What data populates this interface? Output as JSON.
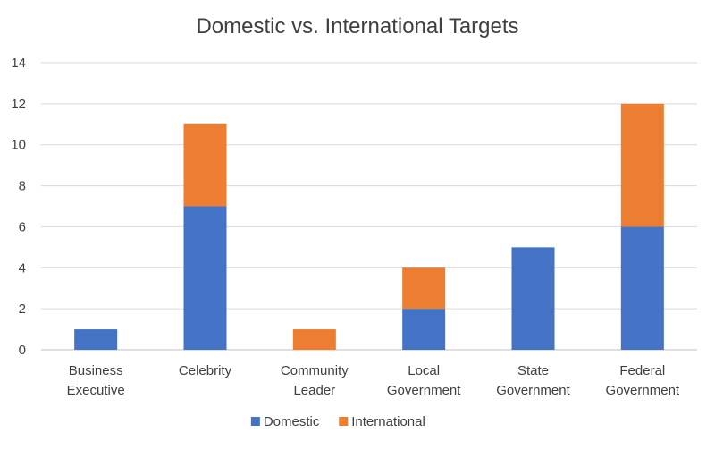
{
  "chart_data": {
    "type": "bar",
    "stacked": true,
    "title": "Domestic vs. International Targets",
    "categories": [
      [
        "Business",
        "Executive"
      ],
      [
        "Celebrity"
      ],
      [
        "Community",
        "Leader"
      ],
      [
        "Local",
        "Government"
      ],
      [
        "State",
        "Government"
      ],
      [
        "Federal",
        "Government"
      ]
    ],
    "series": [
      {
        "name": "Domestic",
        "color": "#4472C4",
        "values": [
          1,
          7,
          0,
          2,
          5,
          6
        ]
      },
      {
        "name": "International",
        "color": "#ED7D31",
        "values": [
          0,
          4,
          1,
          2,
          0,
          6
        ]
      }
    ],
    "ylim": [
      0,
      14
    ],
    "yticks": [
      0,
      2,
      4,
      6,
      8,
      10,
      12,
      14
    ],
    "grid": true,
    "legend": "bottom"
  }
}
